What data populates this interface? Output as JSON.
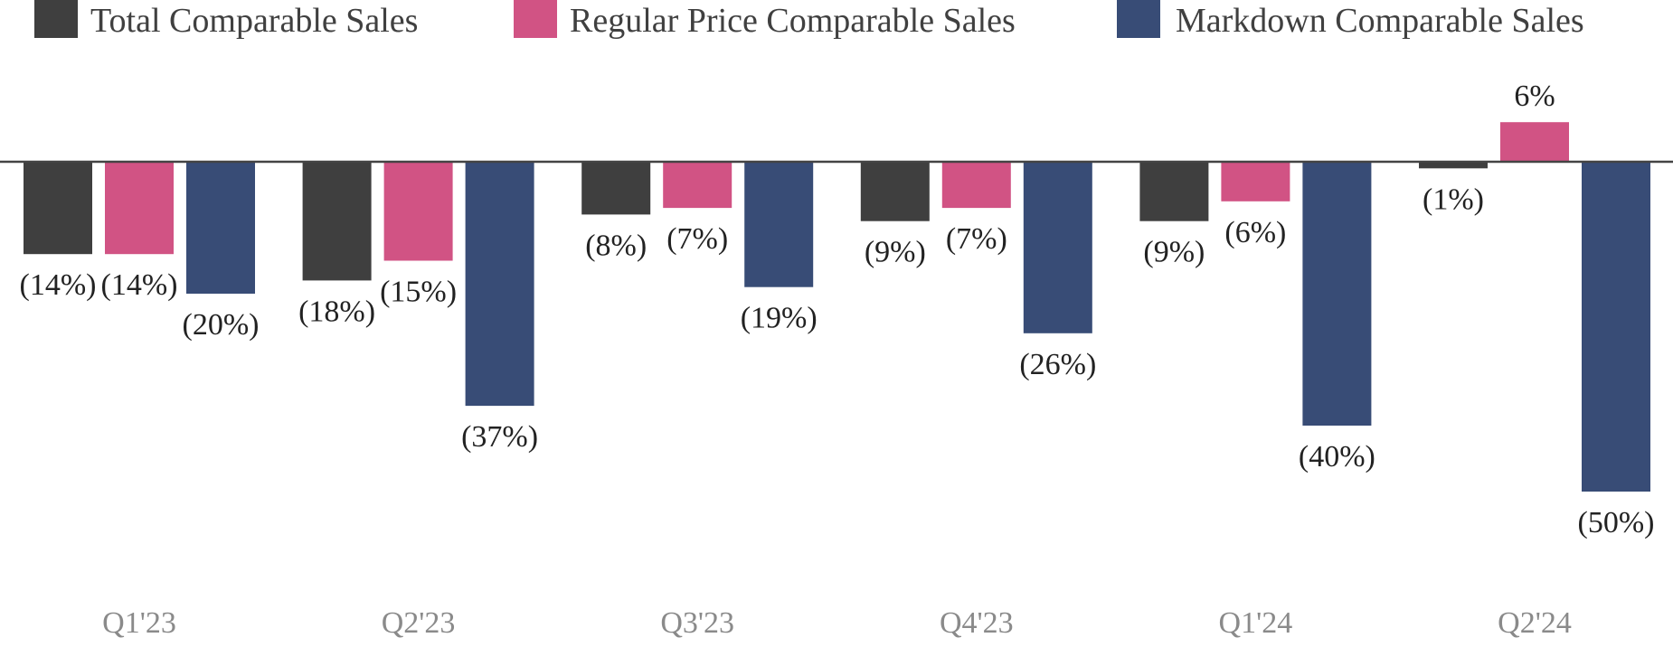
{
  "chart_data": {
    "type": "bar",
    "title": "",
    "xlabel": "",
    "ylabel": "",
    "categories": [
      "Q1'23",
      "Q2'23",
      "Q3'23",
      "Q4'23",
      "Q1'24",
      "Q2'24"
    ],
    "series": [
      {
        "name": "Total Comparable Sales",
        "color": "#3f3f3f",
        "values": [
          -14,
          -18,
          -8,
          -9,
          -9,
          -1
        ],
        "labels": [
          "(14%)",
          "(18%)",
          "(8%)",
          "(9%)",
          "(9%)",
          "(1%)"
        ]
      },
      {
        "name": "Regular Price Comparable Sales",
        "color": "#d15384",
        "values": [
          -14,
          -15,
          -7,
          -7,
          -6,
          6
        ],
        "labels": [
          "(14%)",
          "(15%)",
          "(7%)",
          "(7%)",
          "(6%)",
          "6%"
        ]
      },
      {
        "name": "Markdown Comparable Sales",
        "color": "#384c76",
        "values": [
          -20,
          -37,
          -19,
          -26,
          -40,
          -50
        ],
        "labels": [
          "(20%)",
          "(37%)",
          "(19%)",
          "(26%)",
          "(40%)",
          "(50%)"
        ]
      }
    ],
    "ylim": [
      -60,
      8
    ],
    "grid": false,
    "legend_position": "top",
    "zero_line_color": "#444444"
  }
}
